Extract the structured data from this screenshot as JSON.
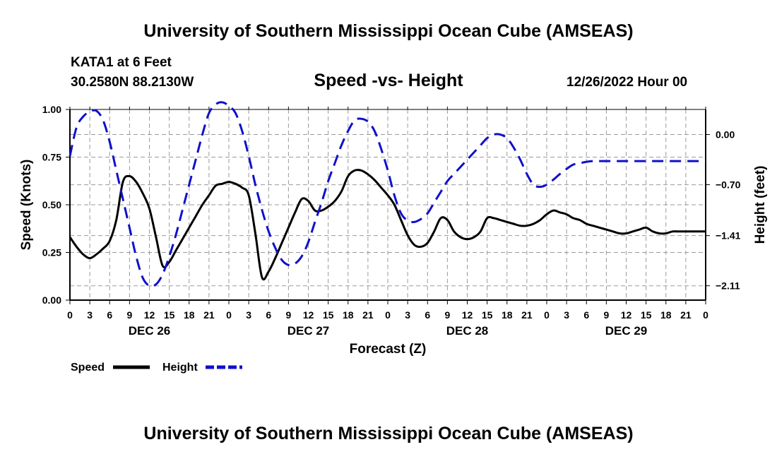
{
  "header": {
    "title": "University of Southern Mississippi Ocean Cube (AMSEAS)",
    "station": "KATA1 at 6 Feet",
    "coords": "30.2580N  88.2130W",
    "plot_title": "Speed -vs- Height",
    "datetime": "12/26/2022 Hour 00"
  },
  "footer": {
    "title": "University of Southern Mississippi Ocean Cube (AMSEAS)"
  },
  "legend": {
    "speed_label": "Speed",
    "height_label": "Height"
  },
  "colors": {
    "speed": "#000000",
    "height": "#1010cc",
    "grid": "#9a9a9a"
  },
  "chart_data": {
    "type": "line",
    "title": "Speed -vs- Height",
    "xlabel": "Forecast (Z)",
    "ylabel": "Speed (Knots)",
    "y2label": "Height (feet)",
    "x_range": [
      0,
      96
    ],
    "ylim": [
      0,
      1
    ],
    "y2lim": [
      -2.31,
      0.35
    ],
    "x_tick_step": 3,
    "x_tick_labels": [
      "0",
      "3",
      "6",
      "9",
      "12",
      "15",
      "18",
      "21",
      "0",
      "3",
      "6",
      "9",
      "12",
      "15",
      "18",
      "21",
      "0",
      "3",
      "6",
      "9",
      "12",
      "15",
      "18",
      "21",
      "0",
      "3",
      "6",
      "9",
      "12",
      "15",
      "18",
      "21",
      "0"
    ],
    "day_labels": [
      {
        "x": 12,
        "label": "DEC 26"
      },
      {
        "x": 36,
        "label": "DEC 27"
      },
      {
        "x": 60,
        "label": "DEC 28"
      },
      {
        "x": 84,
        "label": "DEC 29"
      }
    ],
    "y_ticks": [
      {
        "value": 0.0,
        "label": "0.00"
      },
      {
        "value": 0.25,
        "label": "0.25"
      },
      {
        "value": 0.5,
        "label": "0.50"
      },
      {
        "value": 0.75,
        "label": "0.75"
      },
      {
        "value": 1.0,
        "label": "1.00"
      }
    ],
    "y2_ticks": [
      {
        "value": 0.0,
        "label": "0.00"
      },
      {
        "value": -0.7,
        "label": "−0.70"
      },
      {
        "value": -1.41,
        "label": "−1.41"
      },
      {
        "value": -2.11,
        "label": "−2.11"
      }
    ],
    "grid": true,
    "legend_position": "bottom-left",
    "series": [
      {
        "name": "Speed",
        "axis": "left",
        "style": "solid",
        "x": [
          0,
          1,
          2,
          3,
          4,
          5,
          6,
          7,
          8,
          9,
          10,
          11,
          12,
          13,
          14,
          15,
          16,
          17,
          18,
          19,
          20,
          21,
          22,
          23,
          24,
          25,
          26,
          27,
          28,
          29,
          30,
          31,
          32,
          33,
          34,
          35,
          36,
          37,
          38,
          39,
          40,
          41,
          42,
          43,
          44,
          45,
          46,
          47,
          48,
          49,
          50,
          51,
          52,
          53,
          54,
          55,
          56,
          57,
          58,
          59,
          60,
          61,
          62,
          63,
          64,
          65,
          66,
          67,
          68,
          69,
          70,
          71,
          72,
          73,
          74,
          75,
          76,
          77,
          78,
          79,
          80,
          81,
          82,
          83,
          84,
          85,
          86,
          87,
          88,
          89,
          90,
          91,
          92,
          93,
          94,
          95,
          96
        ],
        "values": [
          0.33,
          0.28,
          0.24,
          0.22,
          0.24,
          0.27,
          0.31,
          0.42,
          0.62,
          0.65,
          0.62,
          0.56,
          0.48,
          0.33,
          0.18,
          0.2,
          0.26,
          0.32,
          0.38,
          0.44,
          0.5,
          0.55,
          0.6,
          0.61,
          0.62,
          0.61,
          0.59,
          0.55,
          0.35,
          0.12,
          0.15,
          0.22,
          0.3,
          0.38,
          0.46,
          0.53,
          0.52,
          0.47,
          0.47,
          0.49,
          0.52,
          0.57,
          0.65,
          0.68,
          0.68,
          0.66,
          0.63,
          0.59,
          0.55,
          0.5,
          0.42,
          0.34,
          0.29,
          0.28,
          0.3,
          0.36,
          0.43,
          0.42,
          0.36,
          0.33,
          0.32,
          0.33,
          0.36,
          0.43,
          0.43,
          0.42,
          0.41,
          0.4,
          0.39,
          0.39,
          0.4,
          0.42,
          0.45,
          0.47,
          0.46,
          0.45,
          0.43,
          0.42,
          0.4,
          0.39,
          0.38,
          0.37,
          0.36,
          0.35,
          0.35,
          0.36,
          0.37,
          0.38,
          0.36,
          0.35,
          0.35,
          0.36,
          0.36,
          0.36,
          0.36,
          0.36,
          0.36
        ]
      },
      {
        "name": "Height",
        "axis": "right",
        "style": "dashed",
        "x": [
          0,
          1,
          2,
          3,
          4,
          5,
          6,
          7,
          8,
          9,
          10,
          11,
          12,
          13,
          14,
          15,
          16,
          17,
          18,
          19,
          20,
          21,
          22,
          23,
          24,
          25,
          26,
          27,
          28,
          29,
          30,
          31,
          32,
          33,
          34,
          35,
          36,
          37,
          38,
          39,
          40,
          41,
          42,
          43,
          44,
          45,
          46,
          47,
          48,
          49,
          50,
          51,
          52,
          53,
          54,
          55,
          56,
          57,
          58,
          59,
          60,
          61,
          62,
          63,
          64,
          65,
          66,
          67,
          68,
          69,
          70,
          71,
          72,
          73,
          74,
          75,
          76,
          77,
          78,
          79,
          80,
          81,
          82,
          83,
          84,
          85,
          86,
          87,
          88,
          89,
          90,
          91,
          92,
          93,
          94,
          95,
          96
        ],
        "values": [
          -0.3,
          0.1,
          0.25,
          0.32,
          0.33,
          0.2,
          -0.1,
          -0.5,
          -0.9,
          -1.3,
          -1.7,
          -2.0,
          -2.11,
          -2.09,
          -1.95,
          -1.7,
          -1.4,
          -1.05,
          -0.7,
          -0.35,
          0.0,
          0.3,
          0.42,
          0.45,
          0.4,
          0.3,
          0.05,
          -0.3,
          -0.7,
          -1.05,
          -1.35,
          -1.58,
          -1.75,
          -1.82,
          -1.8,
          -1.7,
          -1.5,
          -1.22,
          -0.95,
          -0.65,
          -0.4,
          -0.15,
          0.05,
          0.2,
          0.22,
          0.18,
          0.05,
          -0.2,
          -0.5,
          -0.85,
          -1.1,
          -1.2,
          -1.22,
          -1.18,
          -1.1,
          -0.95,
          -0.8,
          -0.65,
          -0.55,
          -0.45,
          -0.35,
          -0.25,
          -0.15,
          -0.05,
          0.0,
          0.0,
          -0.05,
          -0.18,
          -0.35,
          -0.55,
          -0.7,
          -0.73,
          -0.7,
          -0.63,
          -0.55,
          -0.48,
          -0.42,
          -0.4,
          -0.38,
          -0.37,
          -0.37,
          -0.37,
          -0.37,
          -0.37,
          -0.37,
          -0.37,
          -0.37,
          -0.37,
          -0.37,
          -0.37,
          -0.37,
          -0.37,
          -0.37,
          -0.37,
          -0.37,
          -0.37,
          -0.37
        ]
      }
    ]
  }
}
